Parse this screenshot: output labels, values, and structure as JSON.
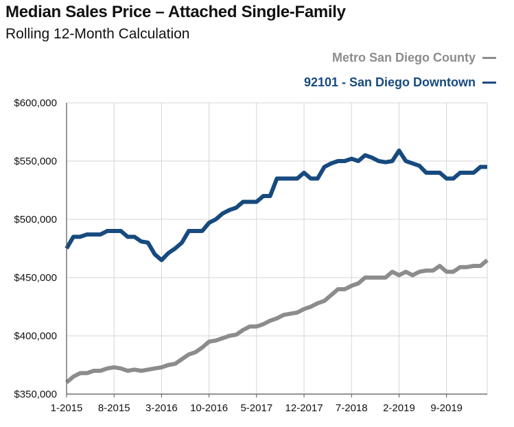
{
  "title": "Median Sales Price – Attached Single-Family",
  "subtitle": "Rolling 12-Month Calculation",
  "chart_data": {
    "type": "line",
    "title": "Median Sales Price – Attached Single-Family",
    "subtitle": "Rolling 12-Month Calculation",
    "x_tick_labels": [
      "1-2015",
      "8-2015",
      "3-2016",
      "10-2016",
      "5-2017",
      "12-2017",
      "7-2018",
      "2-2019",
      "9-2019"
    ],
    "y_tick_labels": [
      "$350,000",
      "$400,000",
      "$450,000",
      "$500,000",
      "$550,000",
      "$600,000"
    ],
    "ylim": [
      350000,
      600000
    ],
    "y_ticks": [
      350000,
      400000,
      450000,
      500000,
      550000,
      600000
    ],
    "grid": true,
    "legend_position": "top-right",
    "series": [
      {
        "name": "Metro San Diego County",
        "color": "#8c8c8c",
        "values": [
          360000,
          365000,
          368000,
          368000,
          370000,
          370000,
          372000,
          373000,
          372000,
          370000,
          371000,
          370000,
          371000,
          372000,
          373000,
          375000,
          376000,
          380000,
          384000,
          386000,
          390000,
          395000,
          396000,
          398000,
          400000,
          401000,
          405000,
          408000,
          408000,
          410000,
          413000,
          415000,
          418000,
          419000,
          420000,
          423000,
          425000,
          428000,
          430000,
          435000,
          440000,
          440000,
          443000,
          445000,
          450000,
          450000,
          450000,
          450000,
          455000,
          452000,
          455000,
          452000,
          455000,
          456000,
          456000,
          460000,
          455000,
          455000,
          459000,
          459000,
          460000,
          460000,
          465000
        ]
      },
      {
        "name": "92101 - San Diego Downtown",
        "color": "#174a7e",
        "values": [
          475000,
          485000,
          485000,
          487000,
          487000,
          487000,
          490000,
          490000,
          490000,
          485000,
          485000,
          481000,
          480000,
          470000,
          465000,
          471000,
          475000,
          480000,
          490000,
          490000,
          490000,
          497000,
          500000,
          505000,
          508000,
          510000,
          515000,
          515000,
          515000,
          520000,
          520000,
          535000,
          535000,
          535000,
          535000,
          540000,
          535000,
          535000,
          545000,
          548000,
          550000,
          550000,
          552000,
          550000,
          555000,
          553000,
          550000,
          549000,
          550000,
          559000,
          550000,
          548000,
          546000,
          540000,
          540000,
          540000,
          535000,
          535000,
          540000,
          540000,
          540000,
          545000,
          545000
        ]
      }
    ]
  }
}
